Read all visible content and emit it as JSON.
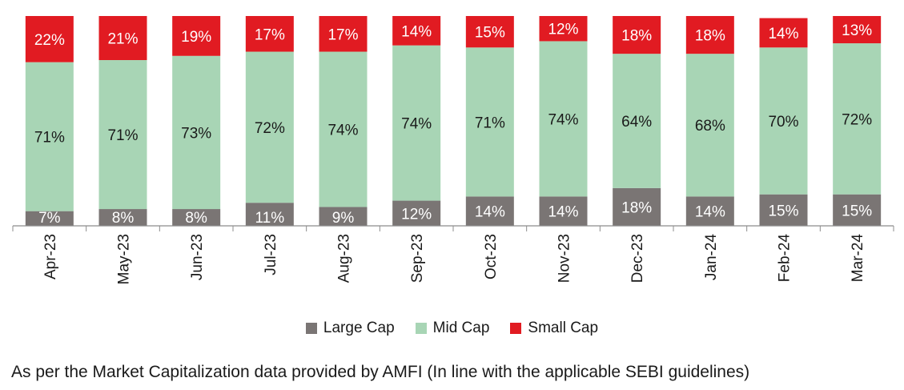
{
  "chart_data": {
    "type": "bar",
    "stacked": true,
    "normalized": true,
    "categories": [
      "Apr-23",
      "May-23",
      "Jun-23",
      "Jul-23",
      "Aug-23",
      "Sep-23",
      "Oct-23",
      "Nov-23",
      "Dec-23",
      "Jan-24",
      "Feb-24",
      "Mar-24"
    ],
    "series": [
      {
        "name": "Large Cap",
        "color": "#7a7574",
        "values": [
          7,
          8,
          8,
          11,
          9,
          12,
          14,
          14,
          18,
          14,
          15,
          15
        ],
        "labels": [
          "7%",
          "8%",
          "8%",
          "11%",
          "9%",
          "12%",
          "14%",
          "14%",
          "18%",
          "14%",
          "15%",
          "15%"
        ]
      },
      {
        "name": "Mid Cap",
        "color": "#a8d5b5",
        "values": [
          71,
          71,
          73,
          72,
          74,
          74,
          71,
          74,
          64,
          68,
          70,
          72
        ],
        "labels": [
          "71%",
          "71%",
          "73%",
          "72%",
          "74%",
          "74%",
          "71%",
          "74%",
          "64%",
          "68%",
          "70%",
          "72%"
        ]
      },
      {
        "name": "Small Cap",
        "color": "#e11b22",
        "values": [
          22,
          21,
          19,
          17,
          17,
          14,
          15,
          12,
          18,
          18,
          14,
          13
        ],
        "labels": [
          "22%",
          "21%",
          "19%",
          "17%",
          "17%",
          "14%",
          "15%",
          "12%",
          "18%",
          "18%",
          "14%",
          "13%"
        ]
      }
    ],
    "title": "",
    "xlabel": "",
    "ylabel": "",
    "ylim": [
      0,
      100
    ],
    "grid": false,
    "legend": "bottom-center"
  },
  "footnote": "As per the Market Capitalization data provided by AMFI (In line with the applicable SEBI guidelines)"
}
